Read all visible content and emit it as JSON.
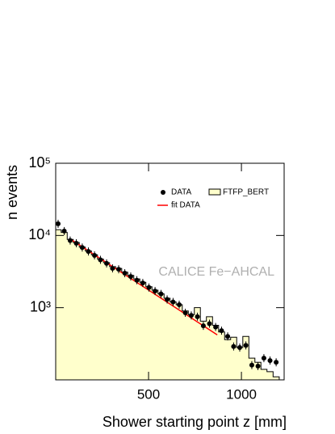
{
  "chart_data": {
    "type": "scatter",
    "xlabel": "Shower starting point z [mm]",
    "ylabel": "n events",
    "annotation": "CALICE Fe−AHCAL",
    "xlim": [
      0,
      1230
    ],
    "xticks": [
      500,
      1000
    ],
    "ylim": [
      100,
      100000
    ],
    "log_y": true,
    "yticks": [
      {
        "value": 1000,
        "label": "10³"
      },
      {
        "value": 10000,
        "label": "10⁴"
      },
      {
        "value": 100000,
        "label": "10⁵"
      }
    ],
    "legend": "upper right",
    "series": [
      {
        "name": "DATA",
        "type": "scatter",
        "color": "#000000",
        "x": [
          13,
          46,
          78,
          111,
          143,
          176,
          209,
          241,
          274,
          306,
          339,
          372,
          404,
          437,
          469,
          502,
          535,
          567,
          600,
          632,
          665,
          698,
          730,
          763,
          795,
          828,
          861,
          893,
          926,
          958,
          991,
          1024,
          1056,
          1089,
          1121,
          1154,
          1187
        ],
        "values": [
          14500,
          11500,
          8500,
          7800,
          6800,
          6000,
          5300,
          4600,
          4100,
          3500,
          3400,
          3000,
          2700,
          2400,
          2200,
          1900,
          1700,
          1550,
          1300,
          1200,
          1100,
          850,
          780,
          750,
          560,
          600,
          540,
          480,
          400,
          290,
          280,
          300,
          160,
          155,
          200,
          185,
          175
        ]
      },
      {
        "name": "fit DATA",
        "type": "line",
        "color": "#ff0000",
        "x": [
          85,
          870
        ],
        "values": [
          8700,
          420
        ]
      },
      {
        "name": "FTFP_BERT",
        "type": "step",
        "color": "#ffffcc",
        "x": [
          13,
          46,
          78,
          111,
          143,
          176,
          209,
          241,
          274,
          306,
          339,
          372,
          404,
          437,
          469,
          502,
          535,
          567,
          600,
          632,
          665,
          698,
          730,
          763,
          795,
          828,
          861,
          893,
          926,
          958,
          991,
          1024,
          1056,
          1089,
          1121,
          1154,
          1187
        ],
        "values": [
          12000,
          11000,
          8800,
          8000,
          6900,
          6100,
          5400,
          4700,
          4200,
          3700,
          3500,
          3100,
          2800,
          2500,
          2250,
          1950,
          1750,
          1550,
          1350,
          1200,
          1100,
          900,
          800,
          1000,
          650,
          750,
          570,
          460,
          360,
          390,
          280,
          400,
          200,
          175,
          140,
          130,
          110
        ]
      }
    ]
  }
}
